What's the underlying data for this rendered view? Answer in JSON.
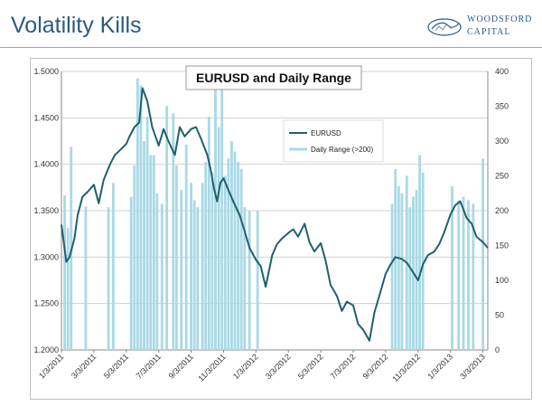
{
  "slide": {
    "title": "Volatility Kills",
    "logo_line1": "WOODSFORD",
    "logo_line2": "CAPITAL"
  },
  "colors": {
    "title": "#2b5a83",
    "eurusd_line": "#1f5f70",
    "range_bar": "#a9d9e6",
    "grid": "#d0d0d0"
  },
  "chart_data": {
    "type": "line",
    "title": "EURUSD and Daily Range",
    "legend_position": "upper-middle",
    "grid": true,
    "y_left": {
      "min": 1.2,
      "max": 1.5,
      "ticks": [
        1.2,
        1.25,
        1.3,
        1.35,
        1.4,
        1.45,
        1.5
      ],
      "tick_labels": [
        "1.2000",
        "1.2500",
        "1.3000",
        "1.3500",
        "1.4000",
        "1.4500",
        "1.5000"
      ]
    },
    "y_right": {
      "min": 0,
      "max": 400,
      "ticks": [
        0,
        50,
        100,
        150,
        200,
        250,
        300,
        350,
        400
      ],
      "tick_labels": [
        "0",
        "50",
        "100",
        "150",
        "200",
        "250",
        "300",
        "350",
        "400"
      ]
    },
    "x_ticks": [
      "1/3/2011",
      "3/3/2011",
      "5/3/2011",
      "7/3/2011",
      "9/3/2011",
      "11/3/2011",
      "1/3/2012",
      "3/3/2012",
      "5/3/2012",
      "7/3/2012",
      "9/3/2012",
      "11/3/2012",
      "1/3/2013",
      "3/3/2013"
    ],
    "series": [
      {
        "name": "EURUSD",
        "axis": "left",
        "x": [
          0,
          0.15,
          0.3,
          0.5,
          0.8,
          1,
          1.3,
          1.6,
          2,
          2.3,
          2.6,
          3,
          3.3,
          3.6,
          4,
          4.2,
          4.5,
          4.8,
          5,
          5.3,
          5.6,
          6,
          6.3,
          6.6,
          7,
          7.3,
          7.6,
          8,
          8.3,
          8.6,
          9,
          9.2,
          9.4,
          9.6,
          9.8,
          10,
          10.3,
          10.6,
          11,
          11.3,
          11.6,
          12,
          12.3,
          12.6,
          13,
          13.3,
          13.6,
          14,
          14.3,
          14.6,
          15,
          15.3,
          15.6,
          16,
          16.3,
          16.6,
          17,
          17.3,
          17.6,
          18,
          18.3,
          18.6,
          19,
          19.3,
          19.6,
          20,
          20.3,
          20.6,
          21,
          21.3,
          21.6,
          22,
          22.3,
          22.6,
          23,
          23.3,
          23.6,
          24,
          24.3,
          24.6,
          25,
          25.3,
          25.6,
          26,
          26.3
        ],
        "values": [
          1.335,
          1.315,
          1.295,
          1.3,
          1.32,
          1.345,
          1.365,
          1.37,
          1.378,
          1.358,
          1.383,
          1.4,
          1.41,
          1.415,
          1.422,
          1.43,
          1.44,
          1.445,
          1.482,
          1.468,
          1.44,
          1.42,
          1.438,
          1.425,
          1.41,
          1.44,
          1.43,
          1.438,
          1.44,
          1.428,
          1.41,
          1.395,
          1.375,
          1.36,
          1.38,
          1.385,
          1.372,
          1.36,
          1.345,
          1.328,
          1.31,
          1.297,
          1.29,
          1.268,
          1.302,
          1.314,
          1.32,
          1.326,
          1.33,
          1.322,
          1.336,
          1.316,
          1.306,
          1.315,
          1.296,
          1.27,
          1.258,
          1.242,
          1.252,
          1.248,
          1.228,
          1.222,
          1.21,
          1.24,
          1.258,
          1.282,
          1.292,
          1.3,
          1.298,
          1.294,
          1.286,
          1.275,
          1.292,
          1.302,
          1.306,
          1.314,
          1.326,
          1.346,
          1.356,
          1.36,
          1.342,
          1.336,
          1.322,
          1.316,
          1.31
        ]
      },
      {
        "name": "Daily Range (>200)",
        "axis": "right",
        "type": "bar",
        "x": [
          0.2,
          0.4,
          0.6,
          1.5,
          2.9,
          3.2,
          4.3,
          4.5,
          4.7,
          4.9,
          5.1,
          5.3,
          5.5,
          5.7,
          5.9,
          6.2,
          6.5,
          6.9,
          7.1,
          7.4,
          7.7,
          8.0,
          8.2,
          8.4,
          8.7,
          8.9,
          9.1,
          9.3,
          9.5,
          9.7,
          9.9,
          10.1,
          10.3,
          10.5,
          10.7,
          10.9,
          11.1,
          11.3,
          11.6,
          12.1,
          20.4,
          20.6,
          20.8,
          21.0,
          21.3,
          21.5,
          21.7,
          21.9,
          22.1,
          22.3,
          24.1,
          24.5,
          24.8,
          25.1,
          25.4,
          26.0
        ],
        "values": [
          222,
          175,
          292,
          206,
          205,
          240,
          220,
          265,
          390,
          380,
          300,
          335,
          280,
          280,
          225,
          210,
          350,
          340,
          265,
          230,
          295,
          240,
          215,
          205,
          240,
          270,
          335,
          255,
          380,
          320,
          400,
          250,
          275,
          300,
          285,
          270,
          260,
          205,
          200,
          200,
          210,
          260,
          235,
          225,
          250,
          205,
          220,
          230,
          280,
          255,
          235,
          215,
          220,
          215,
          210,
          275
        ]
      }
    ]
  }
}
